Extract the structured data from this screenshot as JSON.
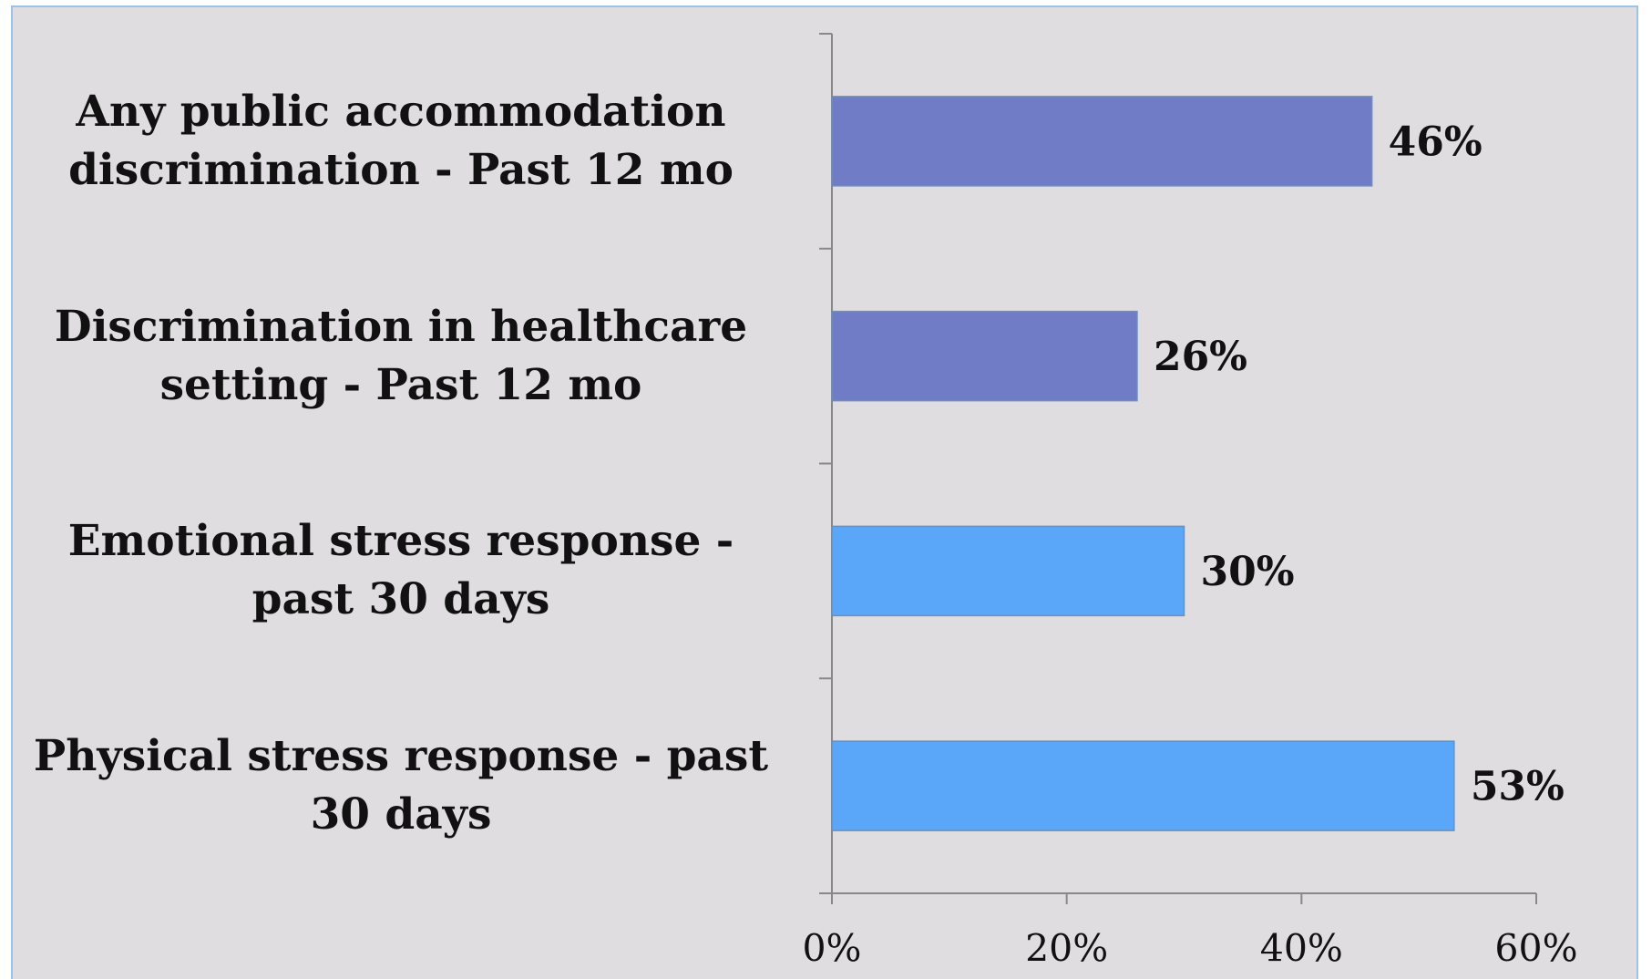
{
  "chart_data": {
    "type": "bar",
    "orientation": "horizontal",
    "categories": [
      "Any public accommodation discrimination - Past 12 mo",
      "Discrimination in healthcare setting - Past 12 mo",
      "Emotional stress response - past 30 days",
      "Physical stress response - past 30 days"
    ],
    "values": [
      46,
      26,
      30,
      53
    ],
    "value_labels": [
      "46%",
      "26%",
      "30%",
      "53%"
    ],
    "colors": [
      "#717cc6",
      "#717cc6",
      "#5aa6f9",
      "#5aa6f9"
    ],
    "xlim": [
      0,
      60
    ],
    "xticks": [
      {
        "value": 0,
        "label": "0%"
      },
      {
        "value": 20,
        "label": "20%"
      },
      {
        "value": 40,
        "label": "40%"
      },
      {
        "value": 60,
        "label": "60%"
      }
    ],
    "grid": false
  }
}
